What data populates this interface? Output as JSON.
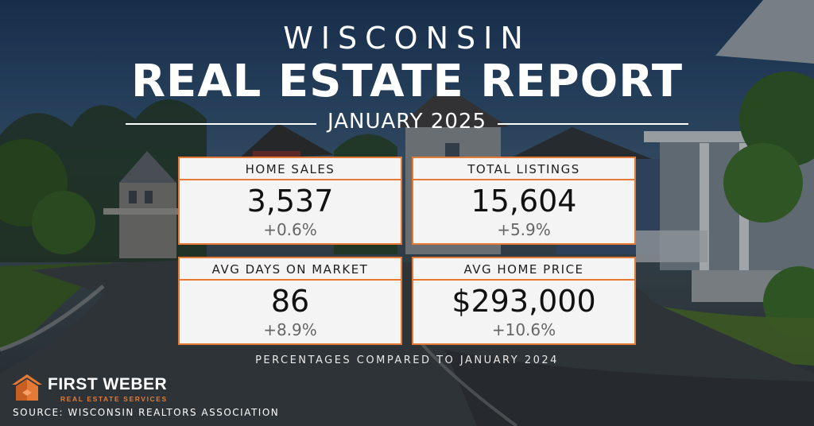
{
  "header": {
    "state": "WISCONSIN",
    "title": "REAL ESTATE REPORT",
    "period": "JANUARY 2025"
  },
  "stats": [
    {
      "label": "HOME SALES",
      "value": "3,537",
      "change": "+0.6%"
    },
    {
      "label": "TOTAL LISTINGS",
      "value": "15,604",
      "change": "+5.9%"
    },
    {
      "label": "AVG DAYS ON MARKET",
      "value": "86",
      "change": "+8.9%"
    },
    {
      "label": "AVG HOME PRICE",
      "value": "$293,000",
      "change": "+10.6%"
    }
  ],
  "footnote": "PERCENTAGES COMPARED TO JANUARY 2024",
  "brand": {
    "name": "FIRST WEBER",
    "tagline": "REAL ESTATE SERVICES",
    "logo_icon": "house-roof-logo-icon"
  },
  "source": "SOURCE: WISCONSIN REALTORS ASSOCIATION",
  "colors": {
    "accent": "#e47a35",
    "card_bg": "#f4f4f4",
    "text_light": "#ffffff"
  }
}
